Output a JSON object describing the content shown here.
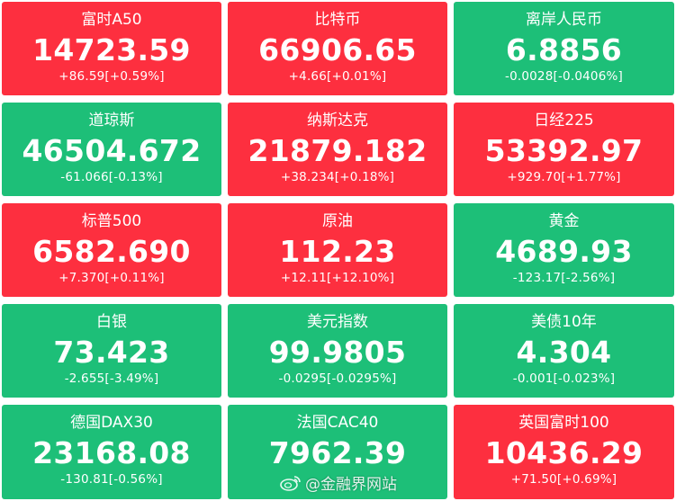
{
  "colors": {
    "up": "#fd2f3f",
    "down": "#1dbf78",
    "text": "#ffffff"
  },
  "tickers": [
    {
      "name": "富时A50",
      "price": "14723.59",
      "change": "+86.59[+0.59%]",
      "trend": "up"
    },
    {
      "name": "比特币",
      "price": "66906.65",
      "change": "+4.66[+0.01%]",
      "trend": "up"
    },
    {
      "name": "离岸人民币",
      "price": "6.8856",
      "change": "-0.0028[-0.0406%]",
      "trend": "down"
    },
    {
      "name": "道琼斯",
      "price": "46504.672",
      "change": "-61.066[-0.13%]",
      "trend": "down"
    },
    {
      "name": "纳斯达克",
      "price": "21879.182",
      "change": "+38.234[+0.18%]",
      "trend": "up"
    },
    {
      "name": "日经225",
      "price": "53392.97",
      "change": "+929.70[+1.77%]",
      "trend": "up"
    },
    {
      "name": "标普500",
      "price": "6582.690",
      "change": "+7.370[+0.11%]",
      "trend": "up"
    },
    {
      "name": "原油",
      "price": "112.23",
      "change": "+12.11[+12.10%]",
      "trend": "up"
    },
    {
      "name": "黄金",
      "price": "4689.93",
      "change": "-123.17[-2.56%]",
      "trend": "down"
    },
    {
      "name": "白银",
      "price": "73.423",
      "change": "-2.655[-3.49%]",
      "trend": "down"
    },
    {
      "name": "美元指数",
      "price": "99.9805",
      "change": "-0.0295[-0.0295%]",
      "trend": "down"
    },
    {
      "name": "美债10年",
      "price": "4.304",
      "change": "-0.001[-0.023%]",
      "trend": "down"
    },
    {
      "name": "德国DAX30",
      "price": "23168.08",
      "change": "-130.81[-0.56%]",
      "trend": "down"
    },
    {
      "name": "法国CAC40",
      "price": "7962.39",
      "change": "",
      "trend": "down"
    },
    {
      "name": "英国富时100",
      "price": "10436.29",
      "change": "+71.50[+0.69%]",
      "trend": "up"
    }
  ],
  "watermark": {
    "text": "@金融界网站",
    "icon": "weibo-logo"
  }
}
